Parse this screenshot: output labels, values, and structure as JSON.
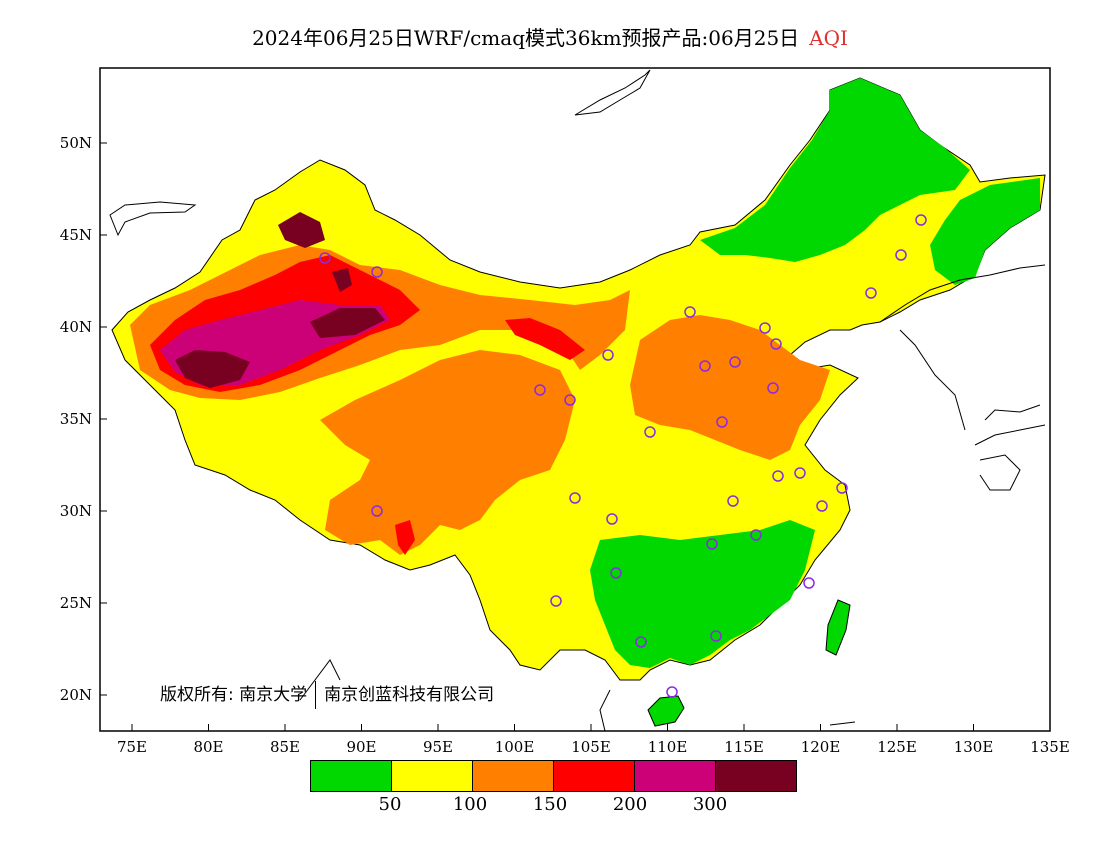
{
  "header": {
    "title": "2024年06月25日WRF/cmaq模式36km预报产品:06月25日",
    "variable": "AQI"
  },
  "map": {
    "region": "China",
    "lon_range": [
      73,
      135
    ],
    "lat_range": [
      18,
      54
    ],
    "lat_ticks": [
      "50N",
      "45N",
      "40N",
      "35N",
      "30N",
      "25N",
      "20N"
    ],
    "lon_ticks": [
      "75E",
      "80E",
      "85E",
      "90E",
      "95E",
      "100E",
      "105E",
      "110E",
      "115E",
      "120E",
      "125E",
      "130E",
      "135E"
    ],
    "station_marker_color": "#8a2be2"
  },
  "copyright": {
    "label": "版权所有:",
    "org1": "南京大学",
    "org2": "南京创蓝科技有限公司"
  },
  "legend": {
    "colors": [
      "#00d800",
      "#ffff00",
      "#ff8000",
      "#ff0000",
      "#cc0077",
      "#780020"
    ],
    "ticks": [
      "50",
      "100",
      "150",
      "200",
      "300"
    ]
  }
}
